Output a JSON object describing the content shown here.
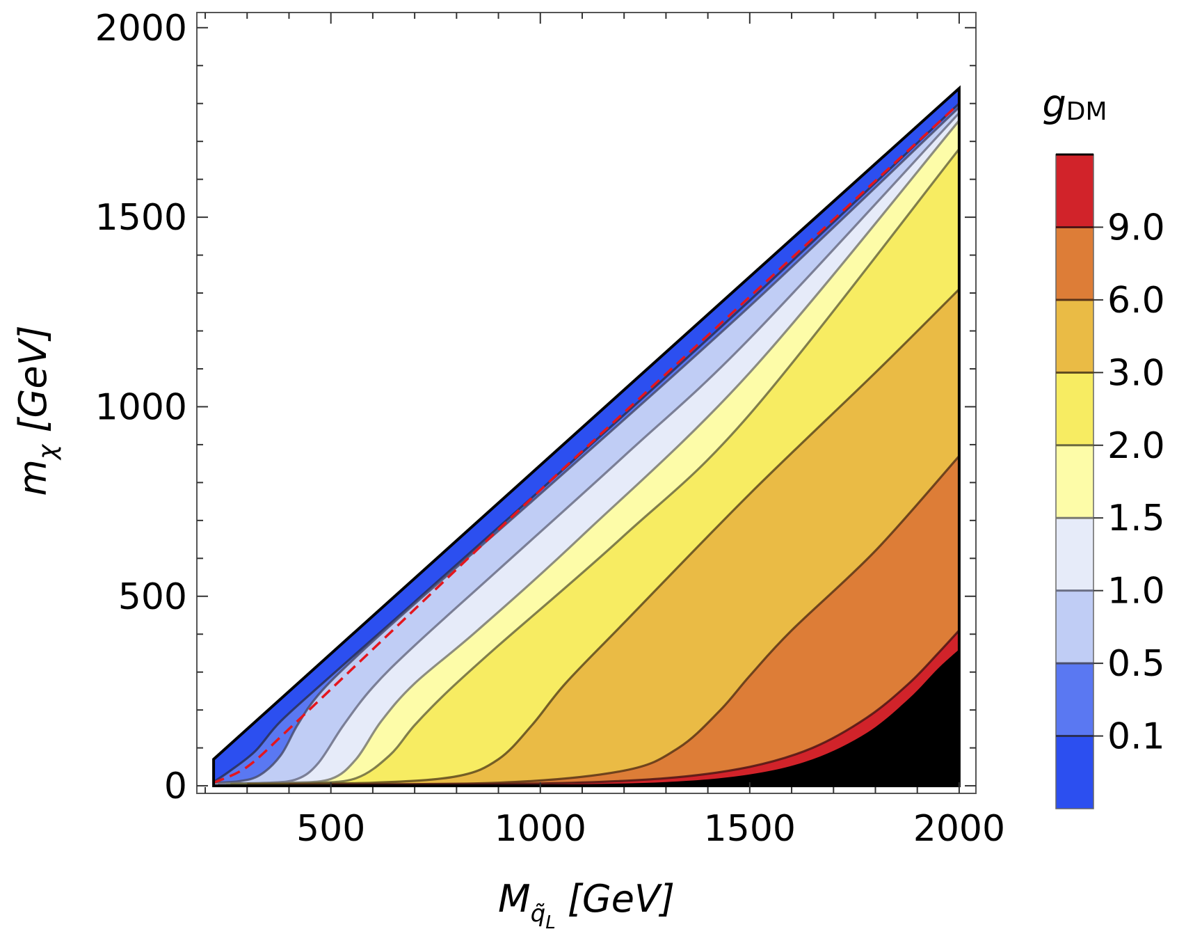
{
  "chart_data": {
    "type": "contour",
    "xlabel": {
      "main": "M",
      "sub": "q̃",
      "subsub": "L",
      "unit": "[GeV]"
    },
    "ylabel": {
      "main": "m",
      "sub": "χ",
      "unit": "[GeV]"
    },
    "xlim": [
      180,
      2040
    ],
    "ylim": [
      -20,
      2040
    ],
    "x_ticks": [
      500,
      1000,
      1500,
      2000
    ],
    "y_ticks": [
      0,
      500,
      1000,
      1500,
      2000
    ],
    "x_tick_labels": [
      "500",
      "1000",
      "1500",
      "2000"
    ],
    "y_tick_labels": [
      "0",
      "500",
      "1000",
      "1500",
      "2000"
    ],
    "region": {
      "x_min": 220,
      "x_max": 2000,
      "diagonal_offset": 180
    },
    "legend": {
      "title_main": "g",
      "title_sub": "DM",
      "placement": "right",
      "levels": [
        "0.1",
        "0.5",
        "1.0",
        "1.5",
        "2.0",
        "3.0",
        "6.0",
        "9.0"
      ],
      "bands": [
        {
          "range": "<0.1",
          "color": "#2c4ff0"
        },
        {
          "range": "0.1-0.5",
          "color": "#5a78f2"
        },
        {
          "range": "0.5-1.0",
          "color": "#c0cdf5"
        },
        {
          "range": "1.0-1.5",
          "color": "#e6ebf9"
        },
        {
          "range": "1.5-2.0",
          "color": "#fdfca8"
        },
        {
          "range": "2.0-3.0",
          "color": "#f7ec62"
        },
        {
          "range": "3.0-6.0",
          "color": "#eabb45"
        },
        {
          "range": "6.0-9.0",
          "color": "#dd7d37"
        },
        {
          "range": ">9.0",
          "color": "#d1232a"
        }
      ]
    },
    "contours": [
      {
        "level": "0.1",
        "points": [
          [
            220,
            10
          ],
          [
            260,
            40
          ],
          [
            320,
            92
          ],
          [
            380,
            170
          ],
          [
            500,
            290
          ],
          [
            700,
            485
          ],
          [
            1000,
            780
          ],
          [
            1500,
            1280
          ],
          [
            2000,
            1800
          ]
        ]
      },
      {
        "level": "0.5",
        "points": [
          [
            220,
            8
          ],
          [
            280,
            12
          ],
          [
            330,
            28
          ],
          [
            380,
            80
          ],
          [
            420,
            160
          ],
          [
            470,
            240
          ],
          [
            560,
            340
          ],
          [
            700,
            480
          ],
          [
            1000,
            770
          ],
          [
            1500,
            1265
          ],
          [
            2000,
            1790
          ]
        ]
      },
      {
        "level": "1.0",
        "points": [
          [
            230,
            6
          ],
          [
            350,
            8
          ],
          [
            420,
            18
          ],
          [
            470,
            60
          ],
          [
            530,
            160
          ],
          [
            600,
            260
          ],
          [
            700,
            370
          ],
          [
            900,
            570
          ],
          [
            1200,
            870
          ],
          [
            1500,
            1180
          ],
          [
            2000,
            1775
          ]
        ]
      },
      {
        "level": "1.5",
        "points": [
          [
            250,
            6
          ],
          [
            400,
            8
          ],
          [
            500,
            18
          ],
          [
            560,
            70
          ],
          [
            620,
            170
          ],
          [
            700,
            270
          ],
          [
            850,
            410
          ],
          [
            1100,
            660
          ],
          [
            1500,
            1090
          ],
          [
            2000,
            1755
          ]
        ]
      },
      {
        "level": "2.0",
        "points": [
          [
            260,
            5
          ],
          [
            450,
            7
          ],
          [
            560,
            20
          ],
          [
            640,
            80
          ],
          [
            700,
            160
          ],
          [
            780,
            250
          ],
          [
            900,
            370
          ],
          [
            1200,
            660
          ],
          [
            1500,
            980
          ],
          [
            2000,
            1680
          ]
        ]
      },
      {
        "level": "3.0",
        "points": [
          [
            300,
            5
          ],
          [
            600,
            8
          ],
          [
            800,
            25
          ],
          [
            900,
            70
          ],
          [
            980,
            160
          ],
          [
            1060,
            270
          ],
          [
            1200,
            430
          ],
          [
            1500,
            770
          ],
          [
            1800,
            1090
          ],
          [
            2000,
            1310
          ]
        ]
      },
      {
        "level": "6.0",
        "points": [
          [
            400,
            4
          ],
          [
            900,
            8
          ],
          [
            1200,
            40
          ],
          [
            1330,
            100
          ],
          [
            1430,
            200
          ],
          [
            1500,
            290
          ],
          [
            1600,
            410
          ],
          [
            1800,
            620
          ],
          [
            2000,
            870
          ]
        ]
      },
      {
        "level": "9.0",
        "points": [
          [
            500,
            3
          ],
          [
            1000,
            6
          ],
          [
            1300,
            20
          ],
          [
            1500,
            50
          ],
          [
            1650,
            100
          ],
          [
            1780,
            180
          ],
          [
            1880,
            270
          ],
          [
            1950,
            350
          ],
          [
            2000,
            410
          ]
        ]
      }
    ],
    "reference_line": {
      "style": "red-dashed",
      "points": [
        [
          220,
          8
        ],
        [
          300,
          50
        ],
        [
          400,
          150
        ],
        [
          600,
          360
        ],
        [
          1000,
          780
        ],
        [
          1500,
          1290
        ],
        [
          2000,
          1800
        ]
      ]
    }
  }
}
